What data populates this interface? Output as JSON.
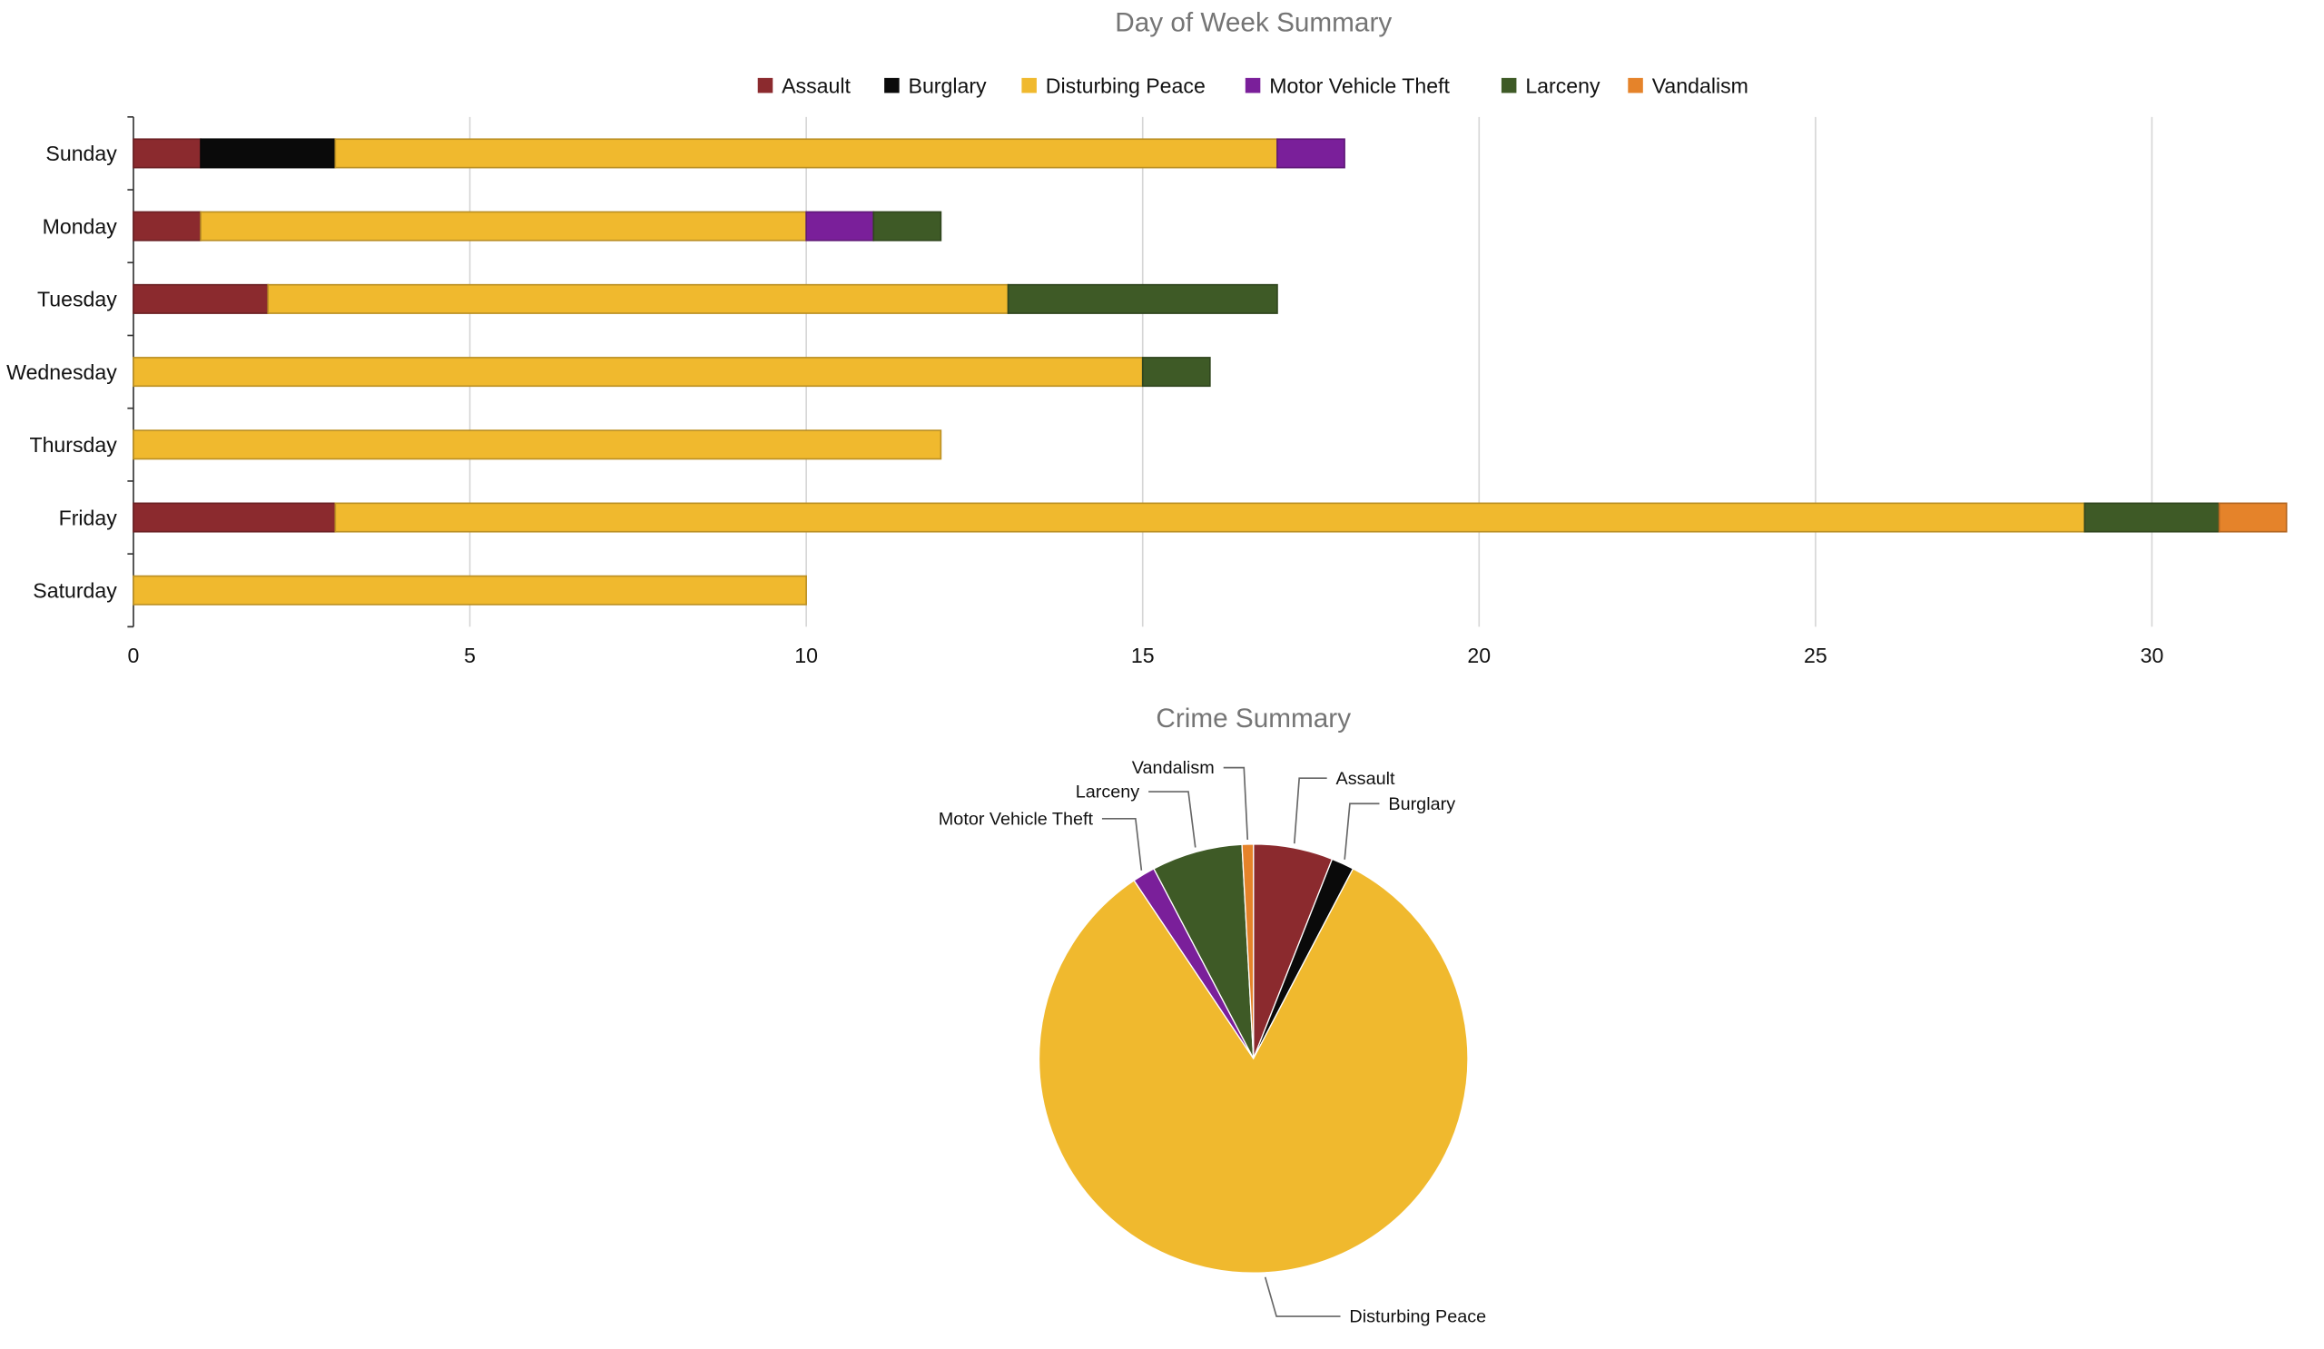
{
  "colors": {
    "Assault": "#8B2A2E",
    "Burglary": "#0A0A0A",
    "Disturbing Peace": "#F0B92E",
    "Motor Vehicle Theft": "#7A1F9A",
    "Larceny": "#3E5A26",
    "Vandalism": "#E5832A"
  },
  "chart_data": [
    {
      "type": "bar",
      "orientation": "horizontal",
      "stacked": true,
      "title": "Day of Week Summary",
      "categories": [
        "Sunday",
        "Monday",
        "Tuesday",
        "Wednesday",
        "Thursday",
        "Friday",
        "Saturday"
      ],
      "series": [
        {
          "name": "Assault",
          "values": [
            1,
            1,
            2,
            0,
            0,
            3,
            0
          ]
        },
        {
          "name": "Burglary",
          "values": [
            2,
            0,
            0,
            0,
            0,
            0,
            0
          ]
        },
        {
          "name": "Disturbing Peace",
          "values": [
            14,
            9,
            11,
            15,
            12,
            26,
            10
          ]
        },
        {
          "name": "Motor Vehicle Theft",
          "values": [
            1,
            1,
            0,
            0,
            0,
            0,
            0
          ]
        },
        {
          "name": "Larceny",
          "values": [
            0,
            1,
            4,
            1,
            0,
            2,
            0
          ]
        },
        {
          "name": "Vandalism",
          "values": [
            0,
            0,
            0,
            0,
            0,
            1,
            0
          ]
        }
      ],
      "xticks": [
        "0",
        "5",
        "10",
        "15",
        "20",
        "25",
        "30"
      ],
      "xlim": [
        0,
        32
      ],
      "grid": true,
      "legend": "top"
    },
    {
      "type": "pie",
      "title": "Crime Summary",
      "labels": [
        "Assault",
        "Burglary",
        "Disturbing Peace",
        "Motor Vehicle Theft",
        "Larceny",
        "Vandalism"
      ],
      "values": [
        7,
        2,
        97,
        2,
        8,
        1
      ]
    }
  ]
}
